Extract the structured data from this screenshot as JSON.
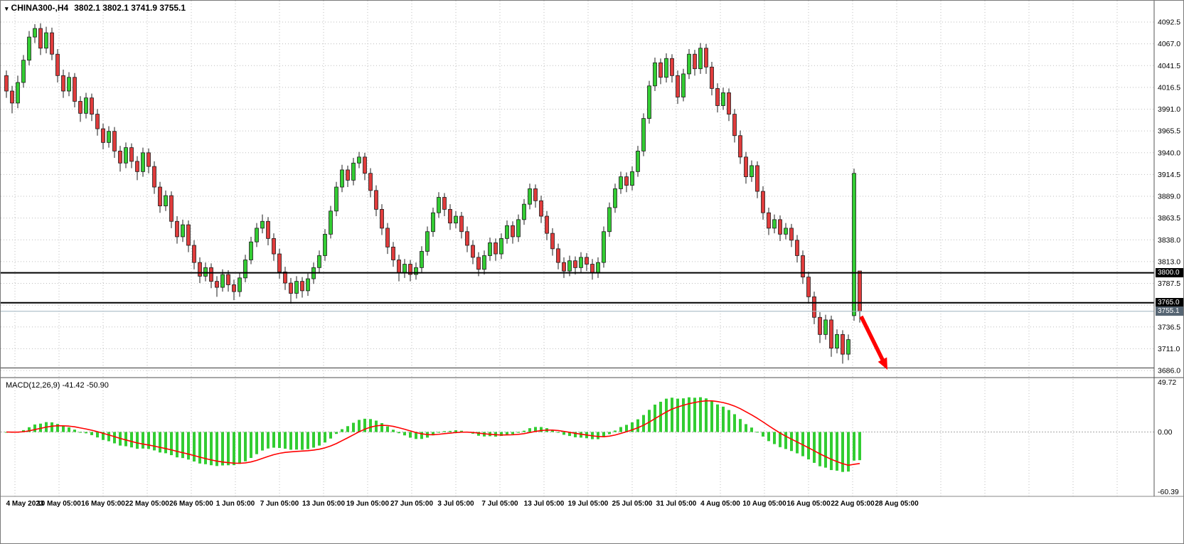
{
  "header": {
    "symbol": "CHINA300-,H4",
    "ohlc": "3802.1 3802.1 3741.9 3755.1"
  },
  "macd": {
    "label": "MACD(12,26,9) -41.42 -50.90",
    "params": [
      12,
      26,
      9
    ],
    "value_main": -41.42,
    "value_signal": -50.9,
    "scale": {
      "max": 49.72,
      "zero": 0.0,
      "min": -60.39
    },
    "scale_labels": [
      "49.72",
      "0.00",
      "-60.39"
    ],
    "histogram_color": "#32CD32",
    "signal_color": "#FF0000"
  },
  "price_axis": {
    "max": 4092.5,
    "min": 3686.0,
    "labels": [
      "4092.5",
      "4067.0",
      "4041.5",
      "4016.5",
      "3991.0",
      "3965.5",
      "3940.0",
      "3914.5",
      "3889.0",
      "3863.5",
      "3838.0",
      "3813.0",
      "3787.5",
      "3762.0",
      "3736.5",
      "3711.0",
      "3686.0"
    ]
  },
  "time_axis": {
    "labels": [
      "4 May 2023",
      "10 May 05:00",
      "16 May 05:00",
      "22 May 05:00",
      "26 May 05:00",
      "1 Jun 05:00",
      "7 Jun 05:00",
      "13 Jun 05:00",
      "19 Jun 05:00",
      "27 Jun 05:00",
      "3 Jul 05:00",
      "7 Jul 05:00",
      "13 Jul 05:00",
      "19 Jul 05:00",
      "25 Jul 05:00",
      "31 Jul 05:00",
      "4 Aug 05:00",
      "10 Aug 05:00",
      "16 Aug 05:00",
      "22 Aug 05:00",
      "28 Aug 05:00"
    ]
  },
  "annotations": {
    "hlines": [
      {
        "price": 3800.0,
        "tag": "3800.0",
        "width": 2,
        "color": "#000000"
      },
      {
        "price": 3765.0,
        "tag": "3765.0",
        "width": 2,
        "color": "#000000"
      },
      {
        "price": 3689.0,
        "width": 1,
        "color": "#333333"
      }
    ],
    "bid": {
      "price": 3755.1,
      "tag": "3755.1",
      "line_color": "#9fb3bf",
      "tag_color": "#566573"
    },
    "arrow": {
      "from": [
        1210,
        444
      ],
      "to": [
        1247,
        519
      ],
      "color": "#FF0000"
    }
  },
  "chart_data": {
    "type": "candlestick",
    "symbol": "CHINA300-",
    "timeframe": "H4",
    "title": "CHINA300- H4 candlestick chart with MACD(12,26,9)",
    "ylim": [
      3686.0,
      4092.5
    ],
    "grid": true,
    "bull_color": "#33CC33",
    "bear_color": "#E03C3C",
    "outline_color": "#1c1c1c",
    "current_bar": {
      "open": 3802.1,
      "high": 3802.1,
      "low": 3741.9,
      "close": 3755.1
    },
    "candles": [
      [
        4030,
        4036,
        4004,
        4012
      ],
      [
        4012,
        4018,
        3986,
        3998
      ],
      [
        3998,
        4030,
        3992,
        4022
      ],
      [
        4022,
        4054,
        4016,
        4048
      ],
      [
        4048,
        4082,
        4042,
        4075
      ],
      [
        4075,
        4090,
        4068,
        4085
      ],
      [
        4085,
        4091,
        4054,
        4062
      ],
      [
        4062,
        4087,
        4056,
        4080
      ],
      [
        4080,
        4086,
        4048,
        4055
      ],
      [
        4055,
        4061,
        4022,
        4030
      ],
      [
        4030,
        4037,
        4004,
        4012
      ],
      [
        4012,
        4034,
        4006,
        4028
      ],
      [
        4028,
        4033,
        3993,
        4000
      ],
      [
        4000,
        4006,
        3976,
        3986
      ],
      [
        3986,
        4010,
        3980,
        4004
      ],
      [
        4004,
        4009,
        3977,
        3985
      ],
      [
        3985,
        3991,
        3960,
        3968
      ],
      [
        3968,
        3974,
        3944,
        3952
      ],
      [
        3952,
        3971,
        3946,
        3965
      ],
      [
        3965,
        3970,
        3934,
        3942
      ],
      [
        3942,
        3948,
        3918,
        3928
      ],
      [
        3928,
        3952,
        3922,
        3946
      ],
      [
        3946,
        3951,
        3922,
        3930
      ],
      [
        3930,
        3936,
        3908,
        3918
      ],
      [
        3918,
        3946,
        3912,
        3940
      ],
      [
        3940,
        3945,
        3916,
        3924
      ],
      [
        3924,
        3930,
        3892,
        3900
      ],
      [
        3900,
        3906,
        3870,
        3878
      ],
      [
        3878,
        3896,
        3872,
        3890
      ],
      [
        3890,
        3895,
        3852,
        3860
      ],
      [
        3860,
        3866,
        3834,
        3842
      ],
      [
        3842,
        3862,
        3836,
        3856
      ],
      [
        3856,
        3861,
        3824,
        3832
      ],
      [
        3832,
        3838,
        3804,
        3812
      ],
      [
        3812,
        3818,
        3788,
        3796
      ],
      [
        3796,
        3812,
        3790,
        3806
      ],
      [
        3806,
        3811,
        3782,
        3790
      ],
      [
        3790,
        3796,
        3772,
        3783
      ],
      [
        3783,
        3804,
        3778,
        3798
      ],
      [
        3798,
        3803,
        3778,
        3786
      ],
      [
        3786,
        3792,
        3768,
        3778
      ],
      [
        3778,
        3800,
        3772,
        3794
      ],
      [
        3794,
        3821,
        3789,
        3815
      ],
      [
        3815,
        3842,
        3810,
        3836
      ],
      [
        3836,
        3858,
        3830,
        3852
      ],
      [
        3852,
        3868,
        3846,
        3860
      ],
      [
        3860,
        3865,
        3832,
        3840
      ],
      [
        3840,
        3846,
        3814,
        3822
      ],
      [
        3822,
        3828,
        3793,
        3801
      ],
      [
        3801,
        3807,
        3780,
        3788
      ],
      [
        3788,
        3794,
        3764,
        3776
      ],
      [
        3776,
        3796,
        3770,
        3790
      ],
      [
        3790,
        3795,
        3771,
        3779
      ],
      [
        3779,
        3799,
        3773,
        3793
      ],
      [
        3793,
        3812,
        3787,
        3806
      ],
      [
        3806,
        3826,
        3800,
        3820
      ],
      [
        3820,
        3851,
        3814,
        3845
      ],
      [
        3845,
        3878,
        3840,
        3872
      ],
      [
        3872,
        3906,
        3866,
        3900
      ],
      [
        3900,
        3926,
        3894,
        3920
      ],
      [
        3920,
        3925,
        3900,
        3908
      ],
      [
        3908,
        3934,
        3902,
        3928
      ],
      [
        3928,
        3941,
        3922,
        3935
      ],
      [
        3935,
        3940,
        3908,
        3916
      ],
      [
        3916,
        3922,
        3888,
        3896
      ],
      [
        3896,
        3902,
        3866,
        3874
      ],
      [
        3874,
        3880,
        3844,
        3852
      ],
      [
        3852,
        3858,
        3822,
        3830
      ],
      [
        3830,
        3836,
        3807,
        3815
      ],
      [
        3815,
        3821,
        3790,
        3800
      ],
      [
        3800,
        3816,
        3794,
        3810
      ],
      [
        3810,
        3815,
        3790,
        3798
      ],
      [
        3798,
        3812,
        3792,
        3806
      ],
      [
        3806,
        3831,
        3800,
        3825
      ],
      [
        3825,
        3854,
        3820,
        3848
      ],
      [
        3848,
        3876,
        3842,
        3870
      ],
      [
        3870,
        3894,
        3864,
        3888
      ],
      [
        3888,
        3893,
        3866,
        3874
      ],
      [
        3874,
        3880,
        3850,
        3858
      ],
      [
        3858,
        3872,
        3852,
        3866
      ],
      [
        3866,
        3871,
        3840,
        3848
      ],
      [
        3848,
        3854,
        3824,
        3832
      ],
      [
        3832,
        3838,
        3810,
        3818
      ],
      [
        3818,
        3824,
        3796,
        3804
      ],
      [
        3804,
        3826,
        3798,
        3820
      ],
      [
        3820,
        3841,
        3814,
        3835
      ],
      [
        3835,
        3840,
        3814,
        3822
      ],
      [
        3822,
        3846,
        3816,
        3840
      ],
      [
        3840,
        3861,
        3834,
        3855
      ],
      [
        3855,
        3860,
        3834,
        3842
      ],
      [
        3842,
        3868,
        3836,
        3862
      ],
      [
        3862,
        3886,
        3856,
        3880
      ],
      [
        3880,
        3904,
        3874,
        3898
      ],
      [
        3898,
        3903,
        3876,
        3884
      ],
      [
        3884,
        3890,
        3858,
        3866
      ],
      [
        3866,
        3872,
        3838,
        3846
      ],
      [
        3846,
        3852,
        3820,
        3828
      ],
      [
        3828,
        3834,
        3804,
        3812
      ],
      [
        3812,
        3818,
        3794,
        3802
      ],
      [
        3802,
        3820,
        3796,
        3814
      ],
      [
        3814,
        3819,
        3798,
        3806
      ],
      [
        3806,
        3824,
        3800,
        3818
      ],
      [
        3818,
        3823,
        3802,
        3810
      ],
      [
        3810,
        3816,
        3792,
        3800
      ],
      [
        3800,
        3818,
        3794,
        3812
      ],
      [
        3812,
        3854,
        3806,
        3848
      ],
      [
        3848,
        3882,
        3842,
        3876
      ],
      [
        3876,
        3904,
        3870,
        3898
      ],
      [
        3898,
        3918,
        3892,
        3912
      ],
      [
        3912,
        3917,
        3894,
        3902
      ],
      [
        3902,
        3924,
        3896,
        3918
      ],
      [
        3918,
        3948,
        3912,
        3942
      ],
      [
        3942,
        3986,
        3936,
        3980
      ],
      [
        3980,
        4024,
        3974,
        4018
      ],
      [
        4018,
        4051,
        4012,
        4045
      ],
      [
        4045,
        4050,
        4020,
        4028
      ],
      [
        4028,
        4056,
        4022,
        4050
      ],
      [
        4050,
        4055,
        4022,
        4030
      ],
      [
        4030,
        4036,
        3997,
        4005
      ],
      [
        4005,
        4038,
        4000,
        4032
      ],
      [
        4032,
        4061,
        4026,
        4055
      ],
      [
        4055,
        4060,
        4030,
        4038
      ],
      [
        4038,
        4068,
        4032,
        4062
      ],
      [
        4062,
        4067,
        4032,
        4040
      ],
      [
        4040,
        4046,
        4007,
        4015
      ],
      [
        4015,
        4021,
        3987,
        3995
      ],
      [
        3995,
        4016,
        3990,
        4010
      ],
      [
        4010,
        4015,
        3977,
        3985
      ],
      [
        3985,
        3991,
        3952,
        3960
      ],
      [
        3960,
        3966,
        3927,
        3935
      ],
      [
        3935,
        3941,
        3904,
        3912
      ],
      [
        3912,
        3931,
        3906,
        3925
      ],
      [
        3925,
        3930,
        3887,
        3895
      ],
      [
        3895,
        3901,
        3862,
        3870
      ],
      [
        3870,
        3876,
        3844,
        3852
      ],
      [
        3852,
        3868,
        3846,
        3862
      ],
      [
        3862,
        3867,
        3837,
        3845
      ],
      [
        3845,
        3858,
        3839,
        3852
      ],
      [
        3852,
        3857,
        3830,
        3838
      ],
      [
        3838,
        3844,
        3812,
        3820
      ],
      [
        3820,
        3826,
        3787,
        3795
      ],
      [
        3795,
        3801,
        3764,
        3772
      ],
      [
        3772,
        3778,
        3740,
        3748
      ],
      [
        3748,
        3754,
        3718,
        3728
      ],
      [
        3728,
        3751,
        3722,
        3745
      ],
      [
        3745,
        3750,
        3702,
        3712
      ],
      [
        3712,
        3734,
        3706,
        3728
      ],
      [
        3728,
        3733,
        3694,
        3705
      ],
      [
        3705,
        3728,
        3698,
        3722
      ],
      [
        3750,
        3921.5,
        3744,
        3916
      ],
      [
        3802.1,
        3802.1,
        3741.9,
        3755.1
      ]
    ]
  }
}
